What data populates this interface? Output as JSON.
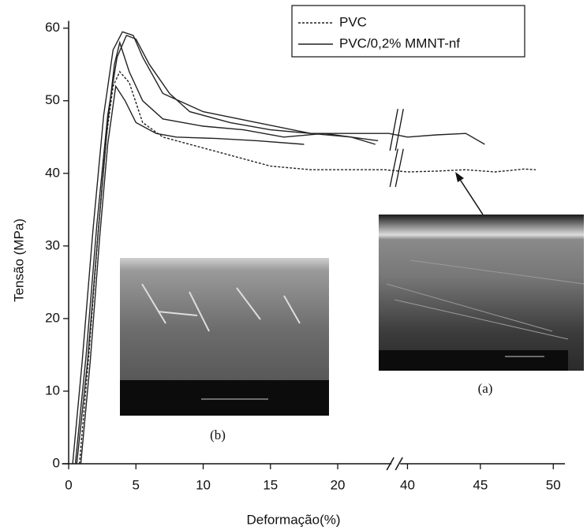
{
  "chart_data": {
    "type": "line",
    "xlabel": "Deformação(%)",
    "ylabel": "Tensão (MPa)",
    "xlim": [
      -0.5,
      50.8
    ],
    "ylim": [
      0,
      61
    ],
    "xticks": [
      0,
      5,
      10,
      15,
      20,
      40,
      45,
      50
    ],
    "yticks": [
      0,
      10,
      20,
      30,
      40,
      50,
      60
    ],
    "x_break": [
      24,
      39.5
    ],
    "legend": "upper right",
    "series": [
      {
        "name": "PVC",
        "color": "#222222",
        "dash": true,
        "curves": [
          {
            "x": [
              0.8,
              1.5,
              2.2,
              2.8,
              3.3,
              3.8,
              4.5,
              5.5,
              7,
              9,
              12,
              15,
              18,
              21,
              23.5,
              40,
              42,
              44,
              46,
              48,
              48.8
            ],
            "values": [
              0,
              15,
              32,
              45,
              52,
              54,
              52.5,
              47,
              45,
              44,
              42.5,
              41,
              40.5,
              40.5,
              40.5,
              40.2,
              40.3,
              40.5,
              40.2,
              40.6,
              40.5
            ]
          }
        ]
      },
      {
        "name": "PVC/0,2% MMNT-nf",
        "color": "#222222",
        "dash": false,
        "curves": [
          {
            "x": [
              0.3,
              1,
              1.8,
              2.6,
              3.3,
              4,
              4.8,
              5.5,
              7,
              10,
              14,
              18,
              22,
              23.8,
              40,
              42,
              44,
              45.3
            ],
            "values": [
              0,
              14,
              32,
              48,
              57,
              59.5,
              59,
              56,
              51,
              48.5,
              47,
              45.5,
              45.5,
              45.5,
              45,
              45.3,
              45.5,
              44
            ]
          },
          {
            "x": [
              0.5,
              1.3,
              2.1,
              2.9,
              3.6,
              4.3,
              5,
              6,
              7.5,
              9,
              12,
              15,
              18,
              21,
              22.8
            ],
            "values": [
              0,
              15,
              33,
              48,
              56,
              59,
              58.5,
              55,
              51,
              48.5,
              47,
              46,
              45.5,
              45,
              44
            ]
          },
          {
            "x": [
              0.6,
              1.4,
              2.2,
              2.9,
              3.4,
              3.8,
              4.5,
              5.5,
              7,
              10,
              13,
              16,
              19,
              21,
              23
            ],
            "values": [
              0,
              14,
              32,
              47,
              55,
              58,
              54,
              50,
              47.5,
              46.5,
              46,
              45,
              45.5,
              45,
              44.5
            ]
          },
          {
            "x": [
              0.9,
              1.6,
              2.3,
              2.9,
              3.5,
              4.2,
              5,
              6.5,
              8,
              11,
              14,
              17.5
            ],
            "values": [
              0,
              14,
              31,
              44,
              52,
              50,
              47,
              45.5,
              45,
              44.8,
              44.5,
              44
            ]
          }
        ]
      }
    ],
    "annotations": [
      "(a)",
      "(b)"
    ]
  }
}
